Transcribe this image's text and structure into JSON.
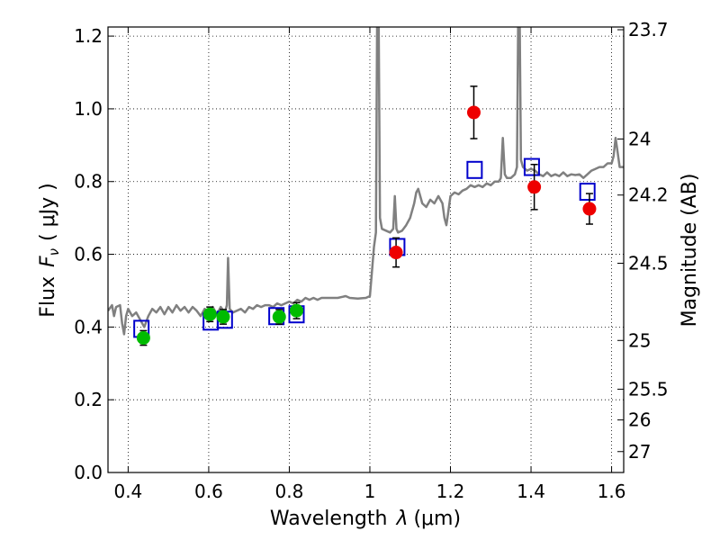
{
  "chart_data": {
    "type": "scatter",
    "xlabel_prefix": "Wavelength",
    "xlabel_symbol": "λ",
    "xlabel_unit": "(μm)",
    "ylabel_prefix": "Flux",
    "ylabel_symbol": "F",
    "ylabel_subscript": "ν",
    "ylabel_unit": "( μJy )",
    "y2label": "Magnitude (AB)",
    "xlim": [
      0.35,
      1.63
    ],
    "ylim": [
      0.0,
      1.225
    ],
    "grid": true,
    "x_ticks": [
      0.4,
      0.6,
      0.8,
      1.0,
      1.2,
      1.4,
      1.6
    ],
    "x_tick_labels": [
      "0.4",
      "0.6",
      "0.8",
      "1",
      "1.2",
      "1.4",
      "1.6"
    ],
    "y_ticks": [
      0.0,
      0.2,
      0.4,
      0.6,
      0.8,
      1.0,
      1.2
    ],
    "y_tick_labels": [
      "0.0",
      "0.2",
      "0.4",
      "0.6",
      "0.8",
      "1.0",
      "1.2"
    ],
    "y2_ticks": [
      {
        "flux": 1.2175,
        "label": "23.7"
      },
      {
        "flux": 0.917,
        "label": "24"
      },
      {
        "flux": 0.7629,
        "label": "24.2"
      },
      {
        "flux": 0.5754,
        "label": "24.5"
      },
      {
        "flux": 0.3631,
        "label": "25"
      },
      {
        "flux": 0.2291,
        "label": "25.5"
      },
      {
        "flux": 0.1445,
        "label": "26"
      },
      {
        "flux": 0.0575,
        "label": "27"
      }
    ],
    "model_spectrum": {
      "color": "#808080",
      "points": [
        [
          0.35,
          0.445
        ],
        [
          0.36,
          0.46
        ],
        [
          0.365,
          0.43
        ],
        [
          0.37,
          0.455
        ],
        [
          0.38,
          0.46
        ],
        [
          0.385,
          0.41
        ],
        [
          0.39,
          0.38
        ],
        [
          0.395,
          0.43
        ],
        [
          0.4,
          0.45
        ],
        [
          0.41,
          0.43
        ],
        [
          0.42,
          0.44
        ],
        [
          0.43,
          0.42
        ],
        [
          0.44,
          0.4
        ],
        [
          0.45,
          0.43
        ],
        [
          0.46,
          0.45
        ],
        [
          0.47,
          0.44
        ],
        [
          0.48,
          0.455
        ],
        [
          0.49,
          0.435
        ],
        [
          0.5,
          0.455
        ],
        [
          0.51,
          0.44
        ],
        [
          0.52,
          0.46
        ],
        [
          0.53,
          0.445
        ],
        [
          0.54,
          0.455
        ],
        [
          0.55,
          0.44
        ],
        [
          0.56,
          0.455
        ],
        [
          0.57,
          0.445
        ],
        [
          0.58,
          0.43
        ],
        [
          0.59,
          0.45
        ],
        [
          0.6,
          0.44
        ],
        [
          0.61,
          0.455
        ],
        [
          0.62,
          0.435
        ],
        [
          0.63,
          0.455
        ],
        [
          0.64,
          0.44
        ],
        [
          0.645,
          0.46
        ],
        [
          0.648,
          0.59
        ],
        [
          0.652,
          0.45
        ],
        [
          0.66,
          0.44
        ],
        [
          0.67,
          0.445
        ],
        [
          0.68,
          0.45
        ],
        [
          0.69,
          0.44
        ],
        [
          0.7,
          0.455
        ],
        [
          0.71,
          0.45
        ],
        [
          0.72,
          0.46
        ],
        [
          0.73,
          0.455
        ],
        [
          0.74,
          0.46
        ],
        [
          0.75,
          0.46
        ],
        [
          0.76,
          0.455
        ],
        [
          0.77,
          0.465
        ],
        [
          0.78,
          0.46
        ],
        [
          0.79,
          0.465
        ],
        [
          0.8,
          0.47
        ],
        [
          0.81,
          0.465
        ],
        [
          0.82,
          0.475
        ],
        [
          0.83,
          0.47
        ],
        [
          0.84,
          0.48
        ],
        [
          0.85,
          0.475
        ],
        [
          0.86,
          0.48
        ],
        [
          0.87,
          0.475
        ],
        [
          0.88,
          0.48
        ],
        [
          0.9,
          0.48
        ],
        [
          0.92,
          0.48
        ],
        [
          0.94,
          0.485
        ],
        [
          0.95,
          0.48
        ],
        [
          0.97,
          0.478
        ],
        [
          0.99,
          0.48
        ],
        [
          1.0,
          0.485
        ],
        [
          1.005,
          0.55
        ],
        [
          1.01,
          0.62
        ],
        [
          1.015,
          0.66
        ],
        [
          1.018,
          1.225
        ],
        [
          1.022,
          1.225
        ],
        [
          1.025,
          0.7
        ],
        [
          1.03,
          0.67
        ],
        [
          1.04,
          0.665
        ],
        [
          1.05,
          0.66
        ],
        [
          1.058,
          0.67
        ],
        [
          1.062,
          0.76
        ],
        [
          1.066,
          0.67
        ],
        [
          1.07,
          0.66
        ],
        [
          1.08,
          0.665
        ],
        [
          1.09,
          0.68
        ],
        [
          1.1,
          0.7
        ],
        [
          1.11,
          0.74
        ],
        [
          1.115,
          0.77
        ],
        [
          1.12,
          0.78
        ],
        [
          1.13,
          0.74
        ],
        [
          1.14,
          0.73
        ],
        [
          1.15,
          0.75
        ],
        [
          1.16,
          0.74
        ],
        [
          1.17,
          0.76
        ],
        [
          1.18,
          0.74
        ],
        [
          1.185,
          0.7
        ],
        [
          1.19,
          0.68
        ],
        [
          1.195,
          0.72
        ],
        [
          1.2,
          0.76
        ],
        [
          1.21,
          0.77
        ],
        [
          1.22,
          0.765
        ],
        [
          1.23,
          0.775
        ],
        [
          1.24,
          0.78
        ],
        [
          1.25,
          0.79
        ],
        [
          1.26,
          0.785
        ],
        [
          1.27,
          0.79
        ],
        [
          1.28,
          0.785
        ],
        [
          1.29,
          0.795
        ],
        [
          1.3,
          0.79
        ],
        [
          1.31,
          0.8
        ],
        [
          1.32,
          0.8
        ],
        [
          1.325,
          0.81
        ],
        [
          1.33,
          0.92
        ],
        [
          1.335,
          0.82
        ],
        [
          1.34,
          0.81
        ],
        [
          1.35,
          0.81
        ],
        [
          1.36,
          0.82
        ],
        [
          1.365,
          0.84
        ],
        [
          1.368,
          1.225
        ],
        [
          1.372,
          1.225
        ],
        [
          1.375,
          0.86
        ],
        [
          1.38,
          0.84
        ],
        [
          1.39,
          0.83
        ],
        [
          1.4,
          0.835
        ],
        [
          1.41,
          0.83
        ],
        [
          1.42,
          0.82
        ],
        [
          1.43,
          0.815
        ],
        [
          1.44,
          0.825
        ],
        [
          1.45,
          0.815
        ],
        [
          1.46,
          0.82
        ],
        [
          1.47,
          0.815
        ],
        [
          1.48,
          0.825
        ],
        [
          1.49,
          0.815
        ],
        [
          1.5,
          0.82
        ],
        [
          1.51,
          0.818
        ],
        [
          1.52,
          0.82
        ],
        [
          1.53,
          0.81
        ],
        [
          1.54,
          0.82
        ],
        [
          1.55,
          0.83
        ],
        [
          1.56,
          0.835
        ],
        [
          1.57,
          0.84
        ],
        [
          1.58,
          0.84
        ],
        [
          1.59,
          0.85
        ],
        [
          1.6,
          0.85
        ],
        [
          1.605,
          0.87
        ],
        [
          1.61,
          0.92
        ],
        [
          1.615,
          0.88
        ],
        [
          1.62,
          0.84
        ],
        [
          1.63,
          0.84
        ]
      ]
    },
    "series": [
      {
        "marker": "open-square",
        "color": "#0000cc",
        "points": [
          {
            "x": 0.433,
            "y": 0.395
          },
          {
            "x": 0.605,
            "y": 0.415
          },
          {
            "x": 0.64,
            "y": 0.42
          },
          {
            "x": 0.768,
            "y": 0.43
          },
          {
            "x": 0.818,
            "y": 0.435
          },
          {
            "x": 1.068,
            "y": 0.62
          },
          {
            "x": 1.26,
            "y": 0.832
          },
          {
            "x": 1.402,
            "y": 0.84
          },
          {
            "x": 1.54,
            "y": 0.772
          }
        ]
      },
      {
        "marker": "filled-circle",
        "color": "#00bb00",
        "points": [
          {
            "x": 0.438,
            "y": 0.37,
            "err": 0.02
          },
          {
            "x": 0.603,
            "y": 0.435,
            "err": 0.02
          },
          {
            "x": 0.636,
            "y": 0.428,
            "err": 0.02
          },
          {
            "x": 0.775,
            "y": 0.428,
            "err": 0.02
          },
          {
            "x": 0.818,
            "y": 0.445,
            "err": 0.022
          }
        ]
      },
      {
        "marker": "filled-circle",
        "color": "#ee0000",
        "points": [
          {
            "x": 1.065,
            "y": 0.605,
            "err": 0.04
          },
          {
            "x": 1.258,
            "y": 0.99,
            "err": 0.072
          },
          {
            "x": 1.408,
            "y": 0.785,
            "err": 0.062
          },
          {
            "x": 1.545,
            "y": 0.725,
            "err": 0.042
          }
        ]
      }
    ]
  }
}
